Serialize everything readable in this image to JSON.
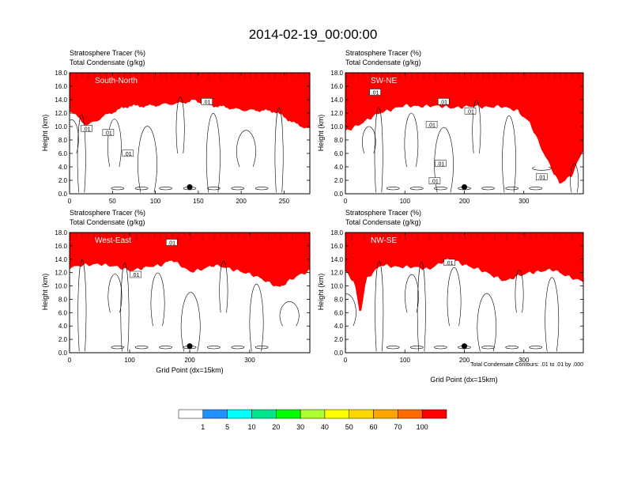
{
  "title": "2014-02-19_00:00:00",
  "panel_titles": {
    "line1": "Stratosphere Tracer   (%)",
    "line2": "Total Condensate   (g/kg)"
  },
  "axis_labels": {
    "y": "Height (km)",
    "x": "Grid Point (dx=15km)"
  },
  "contour_note": "Total Condensate Contours: .01 to .01 by .000",
  "colors": {
    "background": "#ffffff",
    "levels": [
      "#ffffff",
      "#1e90ff",
      "#00bfff",
      "#00ffff",
      "#00e68c",
      "#00ff00",
      "#adff2f",
      "#ffff00",
      "#ffd700",
      "#ffa500",
      "#ff6a00",
      "#ff0000"
    ]
  },
  "colorbar": {
    "labels": [
      "1",
      "5",
      "10",
      "20",
      "30",
      "40",
      "50",
      "60",
      "70",
      "100"
    ],
    "colors": [
      "#ffffff",
      "#1e90ff",
      "#00ffff",
      "#00e68c",
      "#00ff00",
      "#adff2f",
      "#ffff00",
      "#ffd700",
      "#ffa500",
      "#ff6a00",
      "#ff0000"
    ]
  },
  "chart_data": [
    {
      "type": "heatmap",
      "panel": "south-north",
      "label": "South-North",
      "xlim": [
        0,
        280
      ],
      "ylim": [
        0,
        18
      ],
      "xticks": [
        0,
        50,
        100,
        150,
        200,
        250
      ],
      "yticks": [
        0,
        2,
        4,
        6,
        8,
        10,
        12,
        14,
        16,
        18
      ],
      "tropopause": {
        "x": [
          0,
          20,
          40,
          70,
          100,
          125,
          145,
          165,
          200,
          240,
          265,
          280
        ],
        "y": [
          14.8,
          12.6,
          14.0,
          15.5,
          15.6,
          15.8,
          16.4,
          15.5,
          15.0,
          14.6,
          12.8,
          12.0
        ]
      },
      "marker": {
        "x": 140,
        "y": 1.0
      },
      "contour_labels": [
        {
          "text": ".01",
          "x": 20,
          "y": 9.6
        },
        {
          "text": ".01",
          "x": 45,
          "y": 9.0
        },
        {
          "text": ".01",
          "x": 68,
          "y": 5.9
        },
        {
          "text": ".01",
          "x": 160,
          "y": 13.6
        }
      ]
    },
    {
      "type": "heatmap",
      "panel": "sw-ne",
      "label": "SW-NE",
      "xlim": [
        0,
        400
      ],
      "ylim": [
        0,
        18
      ],
      "xticks": [
        0,
        100,
        200,
        300
      ],
      "yticks": [
        0,
        2,
        4,
        6,
        8,
        10,
        12,
        14,
        16,
        18
      ],
      "tropopause": {
        "x": [
          0,
          30,
          60,
          100,
          140,
          180,
          220,
          260,
          290,
          310,
          330,
          360,
          380,
          400
        ],
        "y": [
          11.8,
          13.0,
          14.6,
          15.5,
          15.5,
          15.3,
          15.4,
          15.4,
          14.8,
          13.0,
          9.0,
          4.0,
          5.0,
          9.0
        ]
      },
      "marker": {
        "x": 200,
        "y": 1.0
      },
      "contour_labels": [
        {
          "text": ".01",
          "x": 50,
          "y": 15.0
        },
        {
          "text": ".01",
          "x": 165,
          "y": 13.6
        },
        {
          "text": ".01",
          "x": 210,
          "y": 12.2
        },
        {
          "text": ".01",
          "x": 145,
          "y": 10.2
        },
        {
          "text": ".01",
          "x": 160,
          "y": 4.4
        },
        {
          "text": ".01",
          "x": 150,
          "y": 1.8
        },
        {
          "text": ".01",
          "x": 330,
          "y": 2.4
        }
      ]
    },
    {
      "type": "heatmap",
      "panel": "west-east",
      "label": "West-East",
      "xlim": [
        0,
        400
      ],
      "ylim": [
        0,
        18
      ],
      "xticks": [
        0,
        100,
        200,
        300
      ],
      "yticks": [
        0,
        2,
        4,
        6,
        8,
        10,
        12,
        14,
        16,
        18
      ],
      "tropopause": {
        "x": [
          0,
          50,
          100,
          150,
          170,
          200,
          240,
          280,
          320,
          350,
          380,
          400
        ],
        "y": [
          15.2,
          15.8,
          14.8,
          15.5,
          16.4,
          14.5,
          15.5,
          14.8,
          13.5,
          12.2,
          14.0,
          14.8
        ]
      },
      "marker": {
        "x": 200,
        "y": 1.0
      },
      "contour_labels": [
        {
          "text": ".01",
          "x": 170,
          "y": 16.4
        },
        {
          "text": ".01",
          "x": 110,
          "y": 11.6
        }
      ]
    },
    {
      "type": "heatmap",
      "panel": "nw-se",
      "label": "NW-SE",
      "xlim": [
        0,
        400
      ],
      "ylim": [
        0,
        18
      ],
      "xticks": [
        0,
        100,
        200,
        300
      ],
      "yticks": [
        0,
        2,
        4,
        6,
        8,
        10,
        12,
        14,
        16,
        18
      ],
      "tropopause": {
        "x": [
          0,
          15,
          25,
          35,
          60,
          100,
          140,
          175,
          220,
          270,
          310,
          350,
          400
        ],
        "y": [
          14.5,
          13.0,
          8.0,
          13.5,
          15.5,
          15.3,
          15.0,
          16.5,
          15.0,
          13.2,
          14.5,
          14.8,
          13.0
        ]
      },
      "marker": {
        "x": 200,
        "y": 1.0
      },
      "contour_labels": [
        {
          "text": ".01",
          "x": 175,
          "y": 13.4
        }
      ]
    }
  ]
}
